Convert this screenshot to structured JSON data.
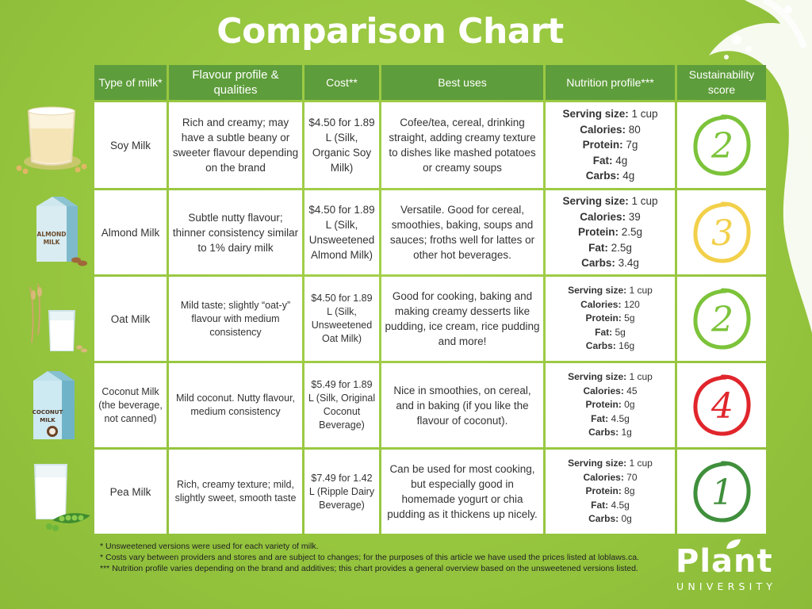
{
  "title": "Comparison Chart",
  "headers": [
    "Type of milk*",
    "Flavour profile & qualities",
    "Cost**",
    "Best uses",
    "Nutrition profile***",
    "Sustainability score"
  ],
  "rows": [
    {
      "type": "Soy Milk",
      "flavour": "Rich and creamy; may have a subtle beany or sweeter flavour depending on the brand",
      "cost": "$4.50 for 1.89 L (Silk, Organic Soy Milk)",
      "uses": "Cofee/tea, cereal, drinking straight, adding creamy texture to dishes like mashed potatoes or creamy soups",
      "nutrition": {
        "serving": "1 cup",
        "calories": "80",
        "protein": "7g",
        "fat": "4g",
        "carbs": "4g"
      },
      "score": "2",
      "score_color": "#7cc33a"
    },
    {
      "type": "Almond Milk",
      "flavour": "Subtle nutty flavour; thinner consistency similar to 1% dairy milk",
      "cost": "$4.50 for 1.89 L (Silk, Unsweetened Almond Milk)",
      "uses": "Versatile. Good for cereal, smoothies, baking, soups and sauces; froths well for lattes or other hot beverages.",
      "nutrition": {
        "serving": "1 cup",
        "calories": "39",
        "protein": "2.5g",
        "fat": "2.5g",
        "carbs": "3.4g"
      },
      "score": "3",
      "score_color": "#f2d04a"
    },
    {
      "type": "Oat Milk",
      "flavour": "Mild taste; slightly “oat-y” flavour with medium consistency",
      "cost": "$4.50 for 1.89 L (Silk, Unsweetened Oat Milk)",
      "uses": "Good for cooking, baking and making creamy desserts like pudding, ice cream, rice pudding and more!",
      "nutrition": {
        "serving": "1 cup",
        "calories": "120",
        "protein": "5g",
        "fat": "5g",
        "carbs": "16g"
      },
      "score": "2",
      "score_color": "#7cc33a"
    },
    {
      "type": "Coconut Milk (the beverage, not canned)",
      "flavour": "Mild coconut. Nutty flavour, medium consistency",
      "cost": "$5.49 for 1.89 L (Silk, Original Coconut Beverage)",
      "uses": "Nice in smoothies, on cereal, and in baking (if you like the flavour of coconut).",
      "nutrition": {
        "serving": "1 cup",
        "calories": "45",
        "protein": "0g",
        "fat": "4.5g",
        "carbs": "1g"
      },
      "score": "4",
      "score_color": "#e0262c"
    },
    {
      "type": "Pea Milk",
      "flavour": "Rich, creamy texture; mild, slightly sweet, smooth taste",
      "cost": "$7.49 for 1.42 L (Ripple Dairy Beverage)",
      "uses": "Can be used for most cooking, but especially good in homemade yogurt or chia pudding as it thickens up nicely.",
      "nutrition": {
        "serving": "1 cup",
        "calories": "70",
        "protein": "8g",
        "fat": "4.5g",
        "carbs": "0g"
      },
      "score": "1",
      "score_color": "#3f8f3b"
    }
  ],
  "nutrition_labels": {
    "serving": "Serving size:",
    "calories": "Calories:",
    "protein": "Protein:",
    "fat": "Fat:",
    "carbs": "Carbs:"
  },
  "footnotes": [
    "* Unsweetened versions were used for each variety of milk.",
    "* Costs vary between providers and stores and are subject to changes; for the purposes of this article we have used the prices listed at loblaws.ca.",
    "*** Nutrition profile varies depending on the brand and additives; this chart provides a general overview based on the unsweetened versions listed."
  ],
  "logo": {
    "word": "Plant",
    "sub": "UNIVERSITY"
  },
  "carton_labels": {
    "almond": [
      "ALMOND",
      "MILK"
    ],
    "coconut": [
      "COCONUT",
      "MILK"
    ]
  },
  "icons": [
    "milk-splash",
    "soy-milk-glass-icon",
    "almond-milk-carton-icon",
    "oat-milk-glass-icon",
    "coconut-milk-carton-icon",
    "pea-milk-glass-icon",
    "leaf-icon"
  ]
}
